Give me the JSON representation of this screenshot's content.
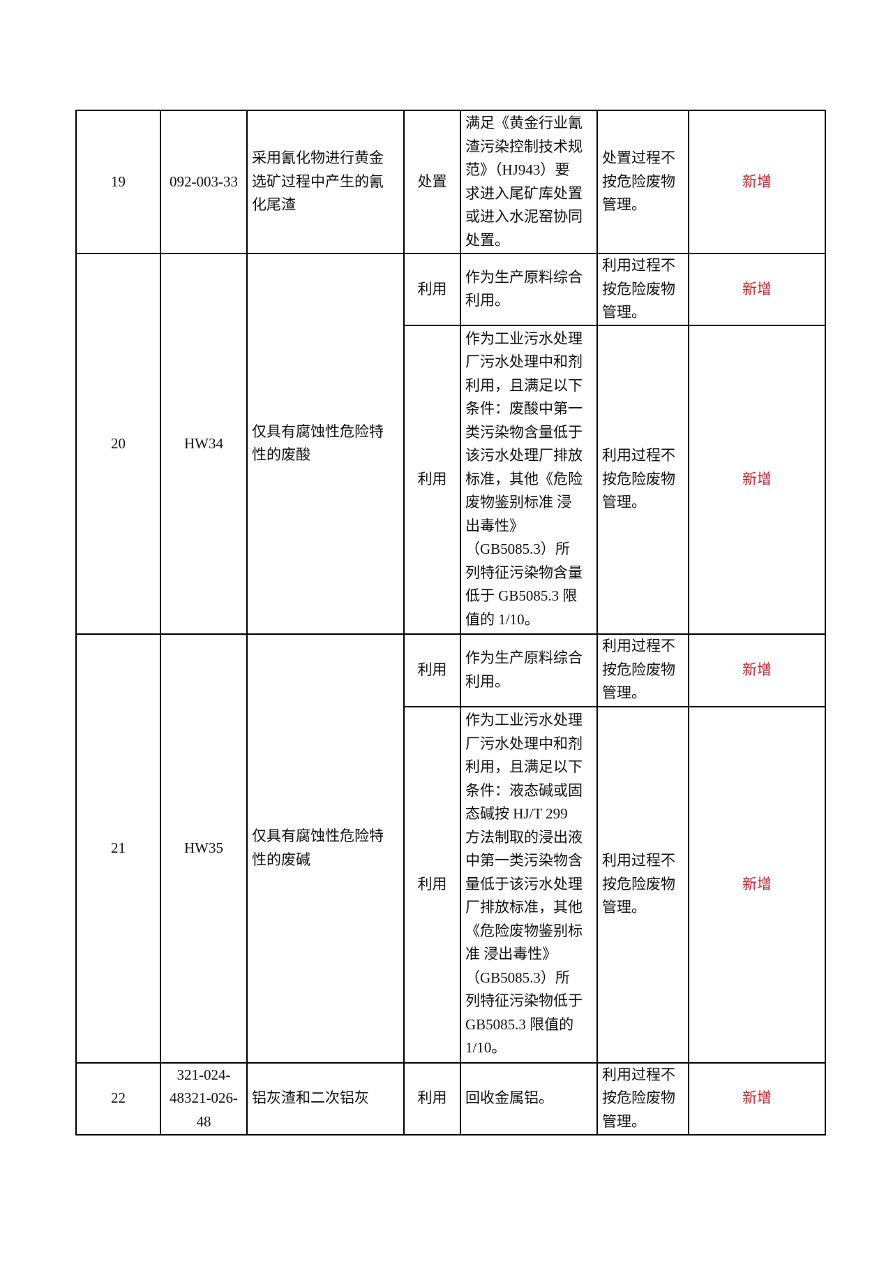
{
  "rows": [
    {
      "no": "19",
      "code": [
        "092-003-33"
      ],
      "name": [
        "采用氰化物进行黄金",
        "选矿过程中产生的氰",
        "化尾渣"
      ],
      "items": [
        {
          "method": "处置",
          "condition": [
            "满足《黄金行业氰",
            "渣污染控制技术规",
            "范》（HJ943）要",
            "求进入尾矿库处置",
            "或进入水泥窑协同",
            "处置。"
          ],
          "note": [
            "处置过程不",
            "按危险废物",
            "管理。"
          ],
          "status": "新增"
        }
      ]
    },
    {
      "no": "20",
      "code": [
        "HW34"
      ],
      "name": [
        "仅具有腐蚀性危险特",
        "性的废酸"
      ],
      "items": [
        {
          "method": "利用",
          "condition": [
            "作为生产原料综合",
            "利用。"
          ],
          "note": [
            "利用过程不",
            "按危险废物",
            "管理。"
          ],
          "status": "新增"
        },
        {
          "method": "利用",
          "condition": [
            "作为工业污水处理",
            "厂污水处理中和剂",
            "利用，且满足以下",
            "条件：废酸中第一",
            "类污染物含量低于",
            "该污水处理厂排放",
            "标准，其他《危险",
            "废物鉴别标准 浸",
            "出毒性》",
            "（GB5085.3）所",
            "列特征污染物含量",
            "低于 GB5085.3 限",
            "值的 1/10。"
          ],
          "note": [
            "利用过程不",
            "按危险废物",
            "管理。"
          ],
          "status": "新增"
        }
      ]
    },
    {
      "no": "21",
      "code": [
        "HW35"
      ],
      "name": [
        "仅具有腐蚀性危险特",
        "性的废碱"
      ],
      "items": [
        {
          "method": "利用",
          "condition": [
            "作为生产原料综合",
            "利用。"
          ],
          "note": [
            "利用过程不",
            "按危险废物",
            "管理。"
          ],
          "status": "新增"
        },
        {
          "method": "利用",
          "condition": [
            "作为工业污水处理",
            "厂污水处理中和剂",
            "利用，且满足以下",
            "条件：液态碱或固",
            "态碱按 HJ/T 299",
            "方法制取的浸出液",
            "中第一类污染物含",
            "量低于该污水处理",
            "厂排放标准，其他",
            "《危险废物鉴别标",
            "准 浸出毒性》",
            "（GB5085.3）所",
            "列特征污染物低于",
            "GB5085.3 限值的",
            "1/10。"
          ],
          "note": [
            "利用过程不",
            "按危险废物",
            "管理。"
          ],
          "status": "新增"
        }
      ]
    },
    {
      "no": "22",
      "code": [
        "321-024-",
        "48321-026-",
        "48"
      ],
      "name": [
        "铝灰渣和二次铝灰"
      ],
      "items": [
        {
          "method": "利用",
          "condition": [
            "回收金属铝。"
          ],
          "note": [
            "利用过程不",
            "按危险废物",
            "管理。"
          ],
          "status": "新增"
        }
      ]
    }
  ],
  "colors": {
    "status": "#c0272d",
    "border": "#000000"
  }
}
